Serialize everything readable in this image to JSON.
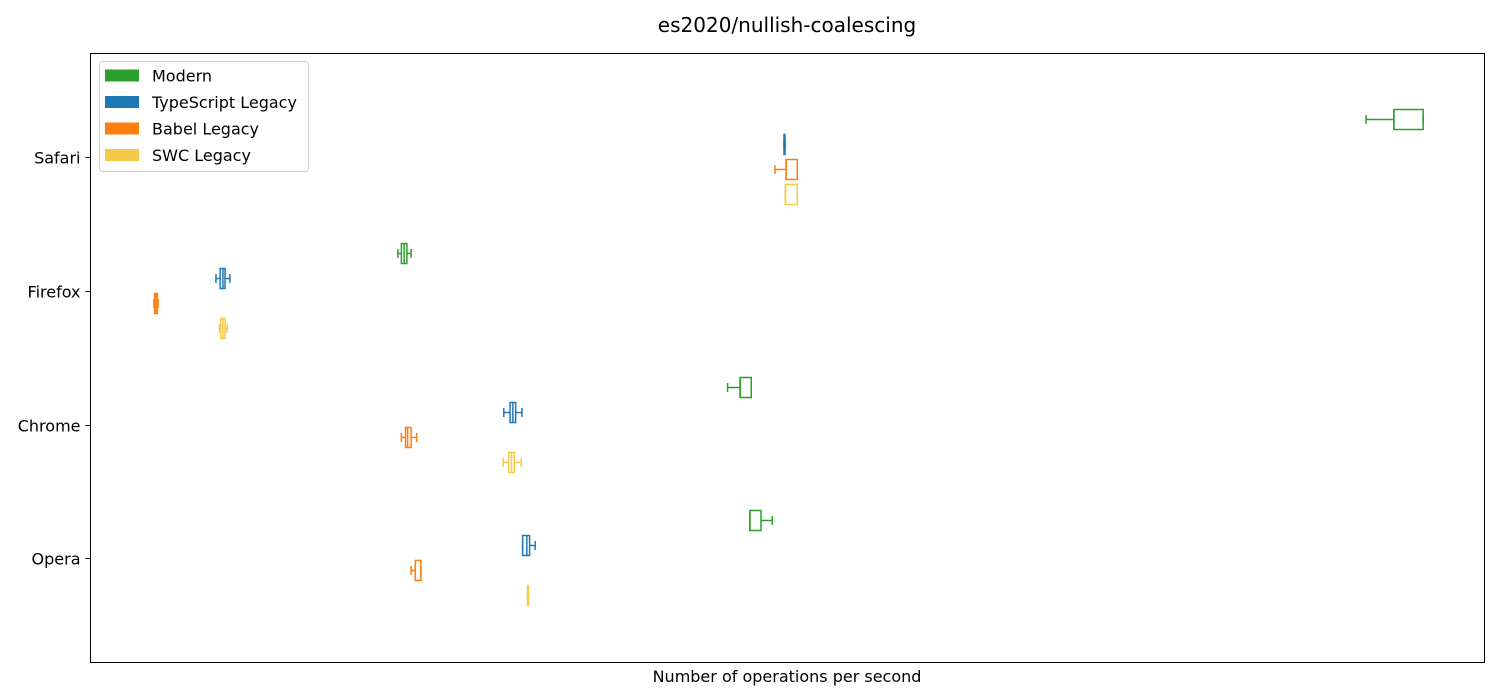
{
  "chart_data": {
    "type": "boxplot",
    "title": "es2020/nullish-coalescing",
    "xlabel": "Number of operations per second",
    "ylabel": "",
    "xlim": [
      0,
      1000
    ],
    "x_ticks_shown": false,
    "grid": false,
    "legend_position": "top-left",
    "categories": [
      "Safari",
      "Firefox",
      "Chrome",
      "Opera"
    ],
    "series": [
      {
        "name": "Modern",
        "color": "#2ca02c",
        "boxes": [
          {
            "category": "Safari",
            "whisker_low": 915.0,
            "q1": 935.0,
            "median": 935.0,
            "q3": 956.0,
            "whisker_high": 956.0
          },
          {
            "category": "Firefox",
            "whisker_low": 220.5,
            "q1": 223.0,
            "median": 225.0,
            "q3": 227.0,
            "whisker_high": 230.0
          },
          {
            "category": "Chrome",
            "whisker_low": 457.0,
            "q1": 466.0,
            "median": 466.0,
            "q3": 474.0,
            "whisker_high": 474.0
          },
          {
            "category": "Opera",
            "whisker_low": 473.0,
            "q1": 473.0,
            "median": 473.0,
            "q3": 481.0,
            "whisker_high": 489.0
          }
        ]
      },
      {
        "name": "TypeScript Legacy",
        "color": "#1f77b4",
        "boxes": [
          {
            "category": "Safari",
            "whisker_low": 497.5,
            "q1": 497.5,
            "median": 497.8,
            "q3": 498.2,
            "whisker_high": 498.2
          },
          {
            "category": "Firefox",
            "whisker_low": 90.0,
            "q1": 93.0,
            "median": 95.0,
            "q3": 96.5,
            "whisker_high": 100.0
          },
          {
            "category": "Chrome",
            "whisker_low": 296.5,
            "q1": 301.0,
            "median": 303.0,
            "q3": 305.0,
            "whisker_high": 309.5
          },
          {
            "category": "Opera",
            "whisker_low": 310.0,
            "q1": 310.0,
            "median": 313.0,
            "q3": 315.0,
            "whisker_high": 319.0
          }
        ]
      },
      {
        "name": "Babel Legacy",
        "color": "#ff7f0e",
        "boxes": [
          {
            "category": "Safari",
            "whisker_low": 491.0,
            "q1": 499.0,
            "median": 499.0,
            "q3": 507.0,
            "whisker_high": 507.0
          },
          {
            "category": "Firefox",
            "whisker_low": 45.5,
            "q1": 46.0,
            "median": 47.0,
            "q3": 48.0,
            "whisker_high": 48.5
          },
          {
            "category": "Chrome",
            "whisker_low": 223.0,
            "q1": 226.0,
            "median": 227.5,
            "q3": 230.0,
            "whisker_high": 234.0
          },
          {
            "category": "Opera",
            "whisker_low": 230.0,
            "q1": 233.0,
            "median": 233.0,
            "q3": 237.0,
            "whisker_high": 237.0
          }
        ]
      },
      {
        "name": "SWC Legacy",
        "color": "#f7c948",
        "boxes": [
          {
            "category": "Safari",
            "whisker_low": 498.5,
            "q1": 498.5,
            "median": 498.5,
            "q3": 507.0,
            "whisker_high": 507.0
          },
          {
            "category": "Firefox",
            "whisker_low": 92.5,
            "q1": 93.5,
            "median": 95.0,
            "q3": 96.5,
            "whisker_high": 98.0
          },
          {
            "category": "Chrome",
            "whisker_low": 296.0,
            "q1": 300.0,
            "median": 302.0,
            "q3": 304.0,
            "whisker_high": 309.0
          },
          {
            "category": "Opera",
            "whisker_low": 313.5,
            "q1": 313.5,
            "median": 313.8,
            "q3": 314.2,
            "whisker_high": 314.2
          }
        ]
      }
    ]
  }
}
